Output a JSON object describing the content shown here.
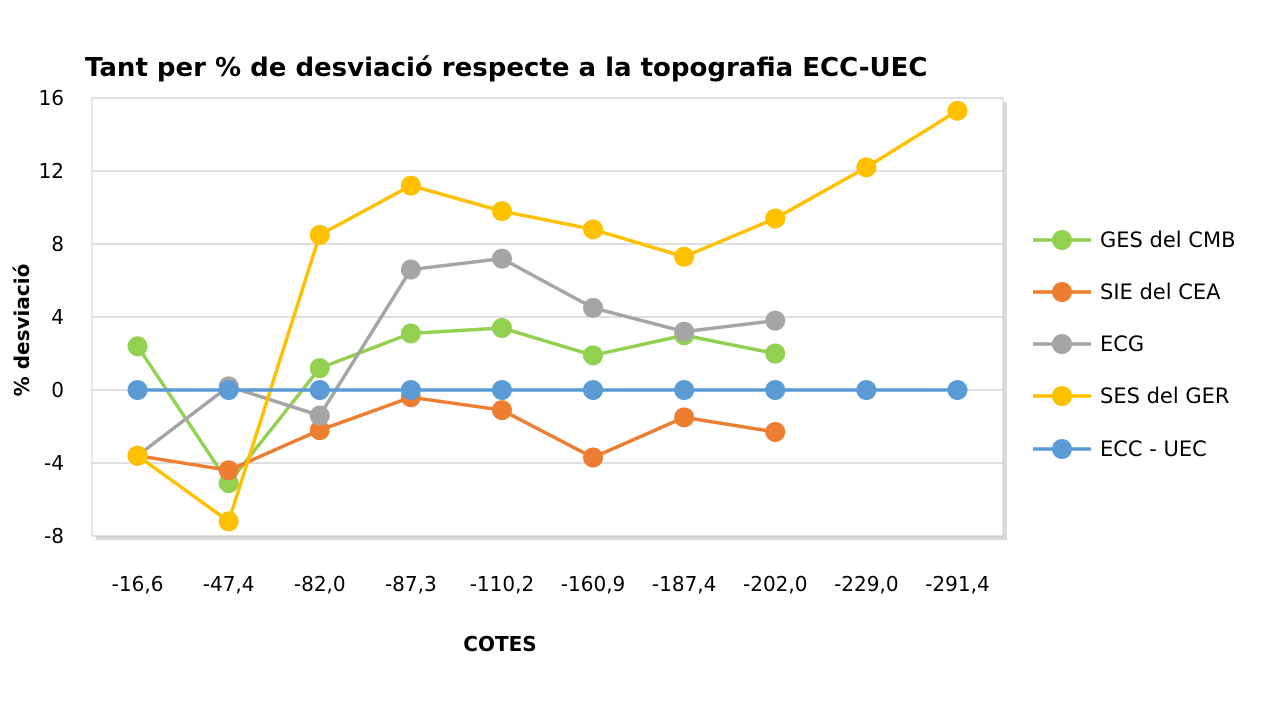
{
  "chart_data": {
    "type": "line",
    "title": "Tant per % de desviació respecte a la topografia ECC-UEC",
    "xlabel": "COTES",
    "ylabel": "% desviació",
    "categories": [
      "-16,6",
      "-47,4",
      "-82,0",
      "-87,3",
      "-110,2",
      "-160,9",
      "-187,4",
      "-202,0",
      "-229,0",
      "-291,4"
    ],
    "ylim": [
      -8,
      16
    ],
    "yticks": [
      -8,
      -4,
      0,
      4,
      8,
      12,
      16
    ],
    "yticks_labels": [
      "-8",
      "-4",
      "0",
      "4",
      "8",
      "12",
      "16"
    ],
    "grid": true,
    "legend_position": "right",
    "series": [
      {
        "name": "GES del CMB",
        "color": "#92d050",
        "values": [
          2.4,
          -5.1,
          1.2,
          3.1,
          3.4,
          1.9,
          3.0,
          2.0,
          null,
          null
        ]
      },
      {
        "name": "SIE del CEA",
        "color": "#ed7d31",
        "values": [
          -3.6,
          -4.4,
          -2.2,
          -0.4,
          -1.1,
          -3.7,
          -1.5,
          -2.3,
          null,
          null
        ]
      },
      {
        "name": "ECG",
        "color": "#a5a5a5",
        "values": [
          -3.6,
          0.2,
          -1.4,
          6.6,
          7.2,
          4.5,
          3.2,
          3.8,
          null,
          null
        ]
      },
      {
        "name": "SES del GER",
        "color": "#ffc000",
        "values": [
          -3.6,
          -7.2,
          8.5,
          11.2,
          9.8,
          8.8,
          7.3,
          9.4,
          12.2,
          15.3
        ]
      },
      {
        "name": "ECC - UEC",
        "color": "#5b9bd5",
        "values": [
          0,
          0,
          0,
          0,
          0,
          0,
          0,
          0,
          0,
          0
        ]
      }
    ]
  }
}
